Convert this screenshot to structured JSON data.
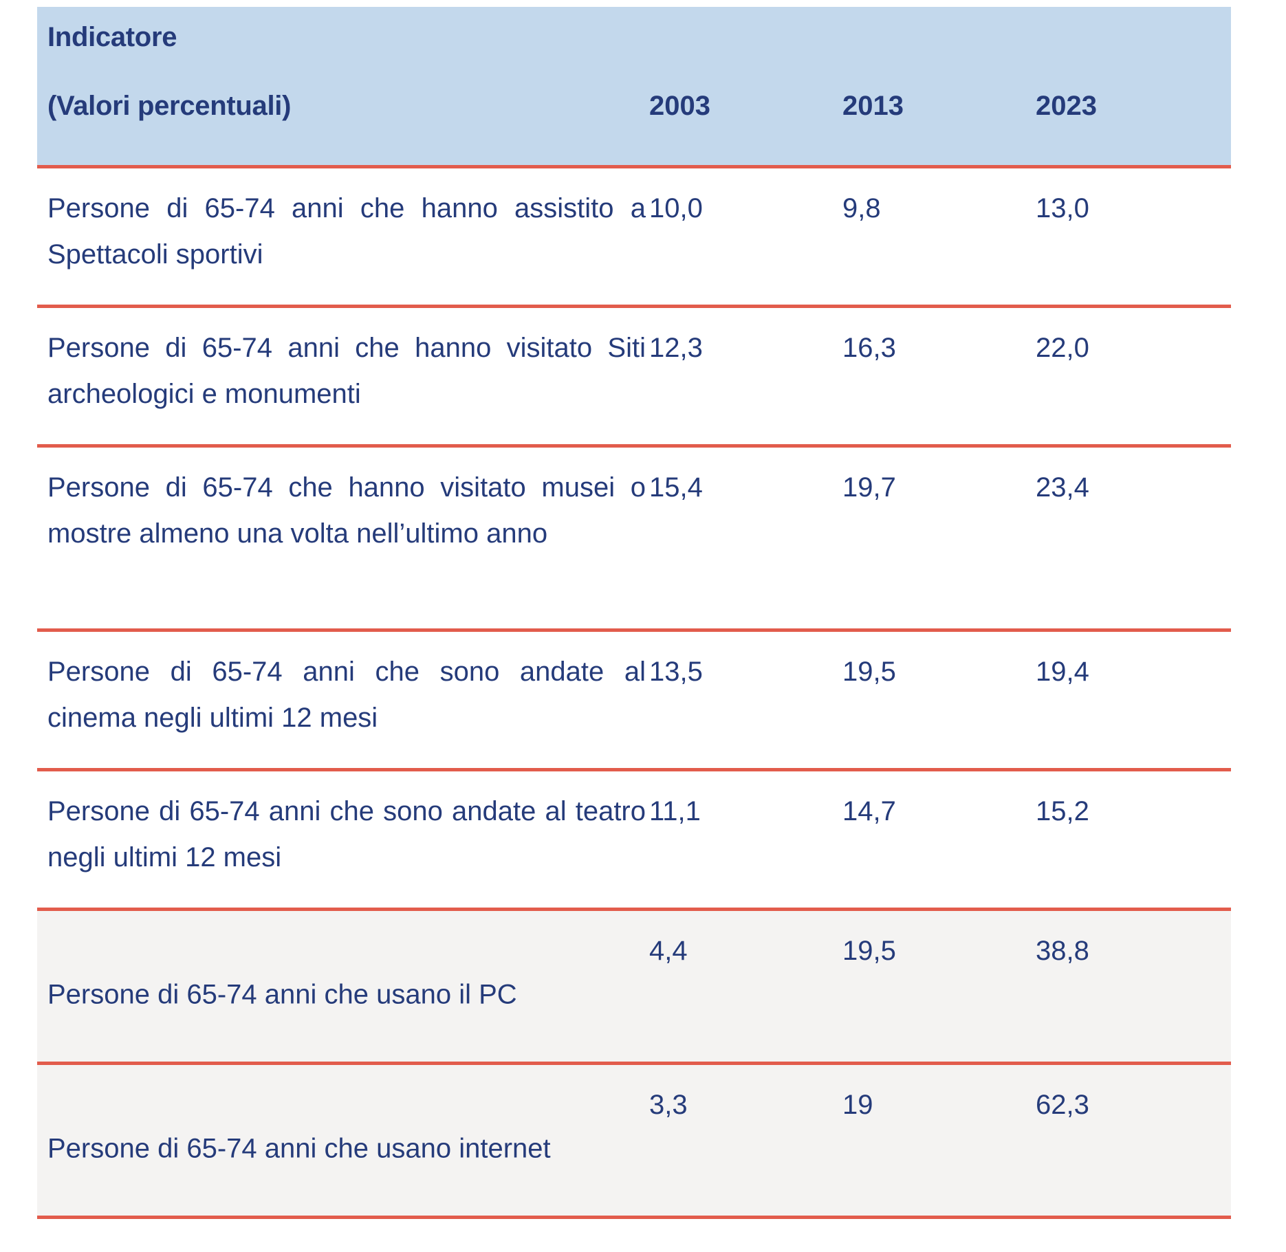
{
  "header": {
    "label_line1": "Indicatore",
    "label_line2": "(Valori percentuali)",
    "years": [
      "2003",
      "2013",
      "2023"
    ]
  },
  "rows": [
    {
      "label": "Persone di 65-74 anni che hanno assistito a Spettacoli sportivi",
      "values": [
        "10,0",
        "9,8",
        "13,0"
      ]
    },
    {
      "label": "Persone di 65-74 anni che hanno visitato Siti archeologici e monumenti",
      "values": [
        "12,3",
        "16,3",
        "22,0"
      ]
    },
    {
      "label": "Persone di 65-74 che hanno visitato musei o mostre almeno una volta nell’ultimo anno",
      "values": [
        "15,4",
        "19,7",
        "23,4"
      ]
    },
    {
      "label": "Persone di 65-74 anni che sono andate al cinema negli ultimi 12 mesi",
      "values": [
        "13,5",
        "19,5",
        "19,4"
      ]
    },
    {
      "label": "Persone di 65-74 anni che sono andate al teatro negli ultimi 12 mesi",
      "values": [
        "11,1",
        "14,7",
        "15,2"
      ]
    },
    {
      "label": "Persone di 65-74 anni che usano il PC",
      "values": [
        "4,4",
        "19,5",
        "38,8"
      ]
    },
    {
      "label": "Persone di 65-74 anni che usano internet",
      "values": [
        "3,3",
        "19",
        "62,3"
      ]
    }
  ]
}
